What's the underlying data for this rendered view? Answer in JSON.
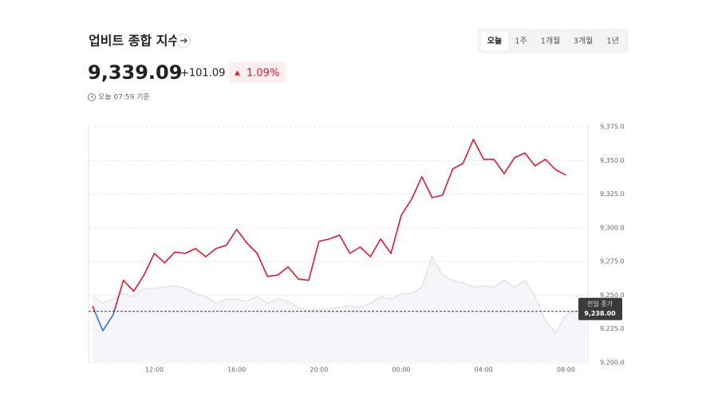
{
  "header": {
    "title": "업비트 종합 지수",
    "price": "9,339.09",
    "change": "+101.09",
    "change_pct": "1.09%",
    "timestamp": "오늘 07:59 기준",
    "tabs": [
      "오늘",
      "1주",
      "1개월",
      "3개월",
      "1년"
    ],
    "active_tab": 0
  },
  "chart_data": {
    "type": "line",
    "categories": [
      "09:00",
      "09:30",
      "10:00",
      "10:30",
      "11:00",
      "11:30",
      "12:00",
      "12:30",
      "13:00",
      "13:30",
      "14:00",
      "14:30",
      "15:00",
      "15:30",
      "16:00",
      "16:30",
      "17:00",
      "17:30",
      "18:00",
      "18:30",
      "19:00",
      "19:30",
      "20:00",
      "20:30",
      "21:00",
      "21:30",
      "22:00",
      "22:30",
      "23:00",
      "23:30",
      "00:00",
      "00:30",
      "01:00",
      "01:30",
      "02:00",
      "02:30",
      "03:00",
      "03:30",
      "04:00",
      "04:30",
      "05:00",
      "05:30",
      "06:00",
      "06:30",
      "07:00",
      "07:30",
      "08:00",
      "08:30",
      "09:00"
    ],
    "xticks": [
      "12:00",
      "16:00",
      "20:00",
      "00:00",
      "04:00",
      "08:00"
    ],
    "series": [
      {
        "color": "#e0e0e4",
        "fill": "#f5f5fa",
        "values": [
          9249,
          9244,
          9247,
          9251,
          9249,
          9255,
          9255,
          9256,
          9257,
          9255,
          9251,
          9249,
          9244,
          9247,
          9247,
          9245.5,
          9249,
          9244,
          9247,
          9245.5,
          9241,
          9238.4,
          9239.6,
          9239.6,
          9241,
          9242,
          9241,
          9244,
          9249,
          9247,
          9251,
          9251,
          9256,
          9278.6,
          9265,
          9261,
          9259,
          9256,
          9257,
          9256,
          9261,
          9256,
          9261,
          9249,
          9231,
          9222,
          9235.5,
          9238.4,
          9237.3
        ]
      },
      {
        "color": "#e0192f",
        "below_color": "#2a6fdb",
        "values": [
          9242,
          9223.6,
          9235.5,
          9261,
          9253,
          9265,
          9281,
          9274,
          9282,
          9281,
          9284.6,
          9278.6,
          9284.6,
          9287,
          9298.8,
          9288.7,
          9281,
          9263.9,
          9265,
          9271,
          9262,
          9261,
          9289.9,
          9291.7,
          9294.6,
          9281,
          9285.7,
          9278.6,
          9291.7,
          9281,
          9309.4,
          9321.2,
          9337.8,
          9322.4,
          9324.2,
          9343.7,
          9347.8,
          9365.6,
          9350.8,
          9350.8,
          9340.2,
          9352,
          9355.5,
          9346,
          9350.8,
          9343.1,
          9339.09,
          null,
          null
        ]
      }
    ],
    "reference": {
      "label": "전일 종가",
      "value": {
        "value": 9238,
        "label": "9,238.00"
      }
    },
    "ylim": [
      9200,
      9375
    ],
    "yticks": [
      {
        "value": 9200,
        "label": "9,200.0"
      },
      {
        "value": 9225,
        "label": "9,225.0"
      },
      {
        "value": 9250,
        "label": "9,250.0"
      },
      {
        "value": 9275,
        "label": "9,275.0"
      },
      {
        "value": 9300,
        "label": "9,300.0"
      },
      {
        "value": 9325,
        "label": "9,325.0"
      },
      {
        "value": 9350,
        "label": "9,350.0"
      },
      {
        "value": 9375,
        "label": "9,375.0"
      }
    ],
    "grid": true
  }
}
